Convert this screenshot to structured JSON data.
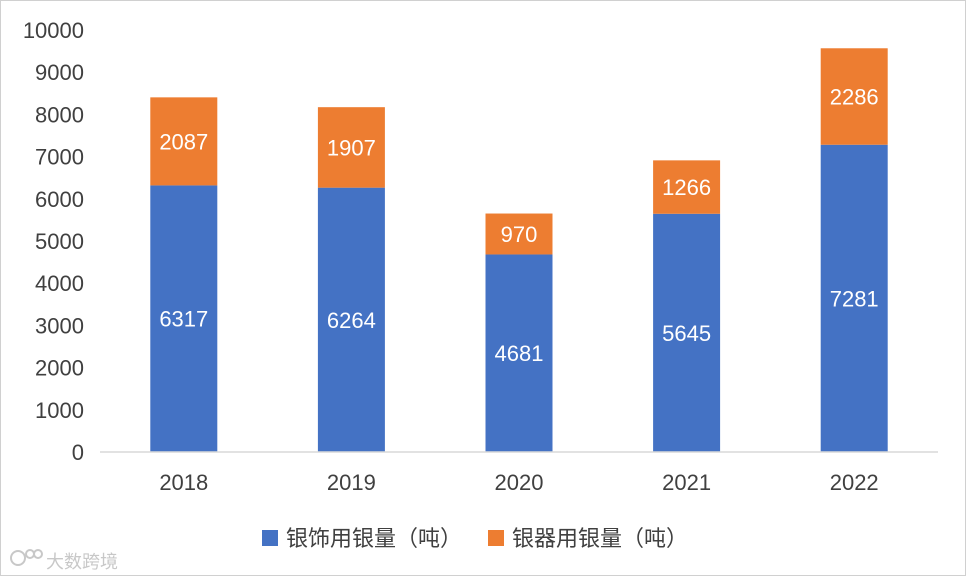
{
  "chart_data": {
    "type": "bar",
    "stacked": true,
    "title": "",
    "xlabel": "",
    "ylabel": "",
    "categories": [
      "2018",
      "2019",
      "2020",
      "2021",
      "2022"
    ],
    "ylim": [
      0,
      10000
    ],
    "yticks": [
      0,
      1000,
      2000,
      3000,
      4000,
      5000,
      6000,
      7000,
      8000,
      9000,
      10000
    ],
    "grid": false,
    "legend_position": "bottom",
    "series": [
      {
        "name": "银饰用银量（吨）",
        "color": "#4472C4",
        "values": [
          6317,
          6264,
          4681,
          5645,
          7281
        ]
      },
      {
        "name": "银器用银量（吨）",
        "color": "#ED7D31",
        "values": [
          2087,
          1907,
          970,
          1266,
          2286
        ]
      }
    ]
  },
  "watermark": {
    "text": "大数跨境",
    "icon": "logo-icon"
  }
}
